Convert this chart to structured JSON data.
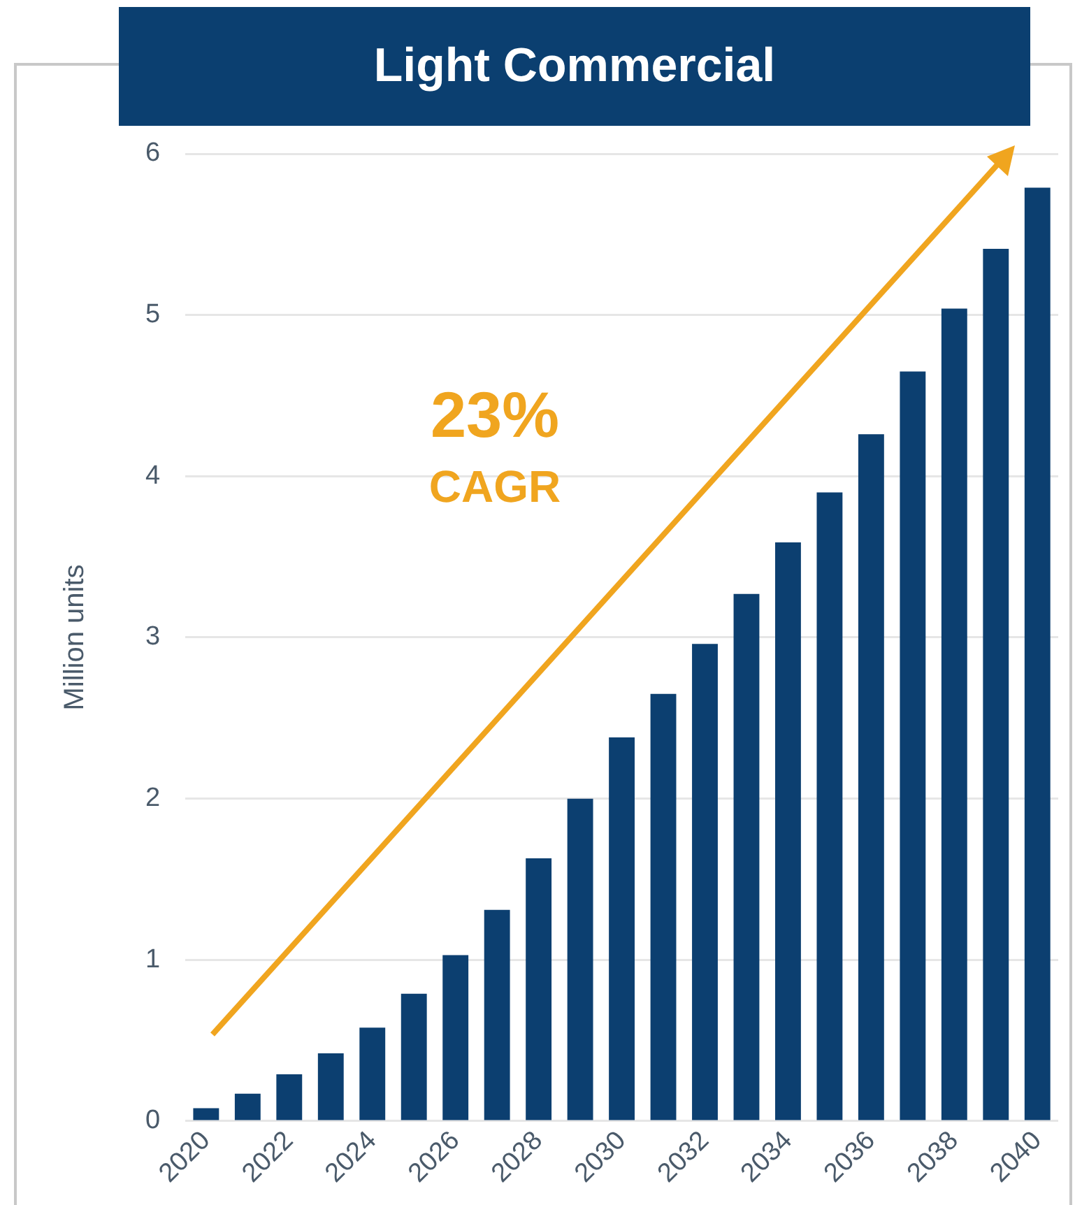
{
  "chart_data": {
    "type": "bar",
    "title": "Light Commercial",
    "ylabel": "Million units",
    "categories": [
      "2020",
      null,
      "2022",
      null,
      "2024",
      null,
      "2026",
      null,
      "2028",
      null,
      "2030",
      null,
      "2032",
      null,
      "2034",
      null,
      "2036",
      null,
      "2038",
      null,
      "2040"
    ],
    "values": [
      0.08,
      0.17,
      0.29,
      0.42,
      0.58,
      0.79,
      1.03,
      1.31,
      1.63,
      2.0,
      2.38,
      2.65,
      2.96,
      3.27,
      3.59,
      3.9,
      4.26,
      4.65,
      5.04,
      5.41,
      5.79
    ],
    "color": "#0c3f70",
    "ylim": [
      0,
      6
    ],
    "yticks": [
      0,
      1,
      2,
      3,
      4,
      5,
      6
    ],
    "grid": "y",
    "legend": false,
    "annotations": [
      "23%",
      "CAGR"
    ]
  }
}
